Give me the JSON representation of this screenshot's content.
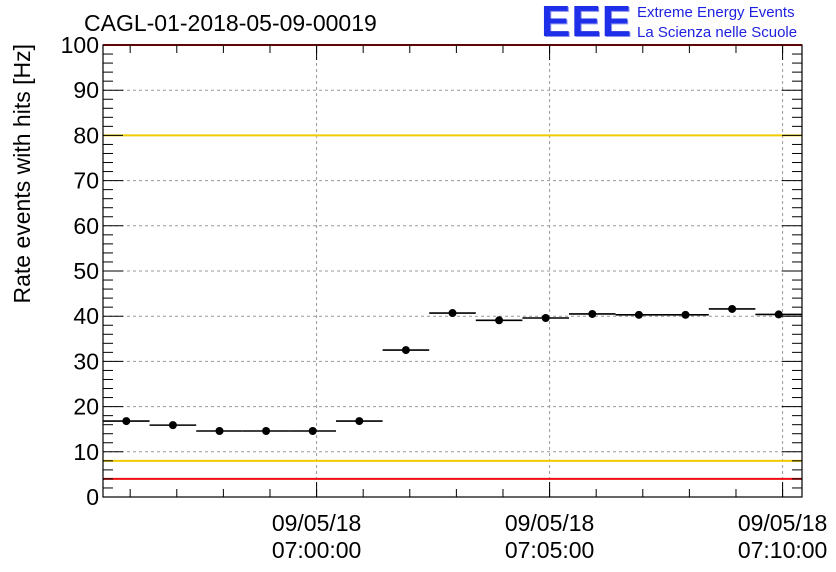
{
  "title": "CAGL-01-2018-05-09-00019",
  "logo": {
    "mark": "EEE",
    "line1": "Extreme Energy Events",
    "line2": "La Scienza nelle Scuole"
  },
  "chart_data": {
    "type": "scatter",
    "title": "CAGL-01-2018-05-09-00019",
    "xlabel": "",
    "ylabel": "Rate events with hits [Hz]",
    "ylim": [
      0,
      100
    ],
    "yticks": [
      0,
      10,
      20,
      30,
      40,
      50,
      60,
      70,
      80,
      90,
      100
    ],
    "xlim": [
      "09/05/18 06:55:25",
      "09/05/18 07:10:25"
    ],
    "xticks": [
      {
        "date": "09/05/18",
        "time": "07:00:00",
        "t": "07:00:00"
      },
      {
        "date": "09/05/18",
        "time": "07:05:00",
        "t": "07:05:00"
      },
      {
        "date": "09/05/18",
        "time": "07:10:00",
        "t": "07:10:00"
      }
    ],
    "bin_width_s": 60,
    "series": [
      {
        "points": [
          {
            "t": "06:55:55",
            "y": 16.8
          },
          {
            "t": "06:56:55",
            "y": 15.9
          },
          {
            "t": "06:57:55",
            "y": 14.6
          },
          {
            "t": "06:58:55",
            "y": 14.6
          },
          {
            "t": "06:59:55",
            "y": 14.6
          },
          {
            "t": "07:00:55",
            "y": 16.8
          },
          {
            "t": "07:01:55",
            "y": 32.5
          },
          {
            "t": "07:02:55",
            "y": 40.7
          },
          {
            "t": "07:03:55",
            "y": 39.1
          },
          {
            "t": "07:04:55",
            "y": 39.6
          },
          {
            "t": "07:05:55",
            "y": 40.5
          },
          {
            "t": "07:06:55",
            "y": 40.3
          },
          {
            "t": "07:07:55",
            "y": 40.3
          },
          {
            "t": "07:08:55",
            "y": 41.6
          },
          {
            "t": "07:09:55",
            "y": 40.4
          }
        ]
      }
    ],
    "reference_lines": [
      {
        "y": 100,
        "color": "#ee1111"
      },
      {
        "y": 80,
        "color": "#f0cc00"
      },
      {
        "y": 8,
        "color": "#f0cc00"
      },
      {
        "y": 4,
        "color": "#ee1111"
      }
    ],
    "grid": true,
    "marker_color": "#000000"
  }
}
